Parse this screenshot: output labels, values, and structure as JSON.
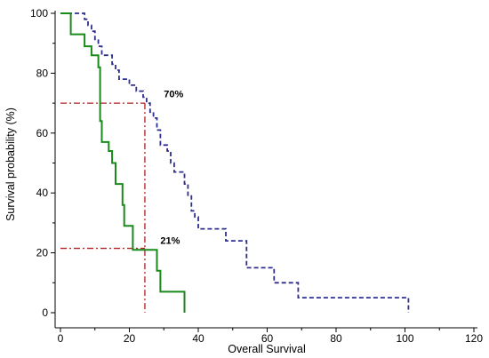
{
  "chart_data": {
    "type": "line",
    "subtype": "kaplan-meier step curves",
    "title": "",
    "xlabel": "Overall Survival",
    "ylabel": "Survival probability (%)",
    "xlim": [
      0,
      120
    ],
    "ylim": [
      0,
      100
    ],
    "xticks": [
      "0",
      "20",
      "40",
      "60",
      "80",
      "100",
      "120"
    ],
    "yticks": [
      "0",
      "20",
      "40",
      "60",
      "80",
      "100"
    ],
    "grid": false,
    "legend": "none",
    "series": [
      {
        "color": "#2e2e8f",
        "line_style": "dashed",
        "points": [
          [
            0,
            100
          ],
          [
            7,
            100
          ],
          [
            7,
            98
          ],
          [
            8,
            98
          ],
          [
            8,
            96
          ],
          [
            9,
            96
          ],
          [
            9,
            94
          ],
          [
            10,
            94
          ],
          [
            10,
            91
          ],
          [
            11,
            91
          ],
          [
            11,
            89
          ],
          [
            12,
            89
          ],
          [
            12,
            86
          ],
          [
            15,
            86
          ],
          [
            15,
            83
          ],
          [
            16,
            83
          ],
          [
            16,
            81
          ],
          [
            17,
            81
          ],
          [
            17,
            78
          ],
          [
            20,
            78
          ],
          [
            20,
            76
          ],
          [
            22,
            76
          ],
          [
            22,
            74
          ],
          [
            24,
            74
          ],
          [
            24,
            72
          ],
          [
            25,
            72
          ],
          [
            25,
            70
          ],
          [
            26,
            70
          ],
          [
            26,
            67
          ],
          [
            27,
            67
          ],
          [
            27,
            65
          ],
          [
            28,
            65
          ],
          [
            28,
            61
          ],
          [
            29,
            61
          ],
          [
            29,
            56
          ],
          [
            31,
            56
          ],
          [
            31,
            54
          ],
          [
            32,
            54
          ],
          [
            32,
            50
          ],
          [
            33,
            50
          ],
          [
            33,
            47
          ],
          [
            36,
            47
          ],
          [
            36,
            43
          ],
          [
            37,
            43
          ],
          [
            37,
            39
          ],
          [
            38,
            39
          ],
          [
            38,
            34
          ],
          [
            39,
            34
          ],
          [
            39,
            32
          ],
          [
            40,
            32
          ],
          [
            40,
            28
          ],
          [
            48,
            28
          ],
          [
            48,
            24
          ],
          [
            54,
            24
          ],
          [
            54,
            15
          ],
          [
            62,
            15
          ],
          [
            62,
            10
          ],
          [
            69,
            10
          ],
          [
            69,
            5
          ],
          [
            101,
            5
          ],
          [
            101,
            0
          ]
        ]
      },
      {
        "color": "#1a8a1a",
        "line_style": "solid",
        "points": [
          [
            0,
            100
          ],
          [
            3,
            100
          ],
          [
            3,
            93
          ],
          [
            7,
            93
          ],
          [
            7,
            89
          ],
          [
            9,
            89
          ],
          [
            9,
            86
          ],
          [
            11,
            86
          ],
          [
            11,
            82
          ],
          [
            11.5,
            82
          ],
          [
            11.5,
            64
          ],
          [
            12,
            64
          ],
          [
            12,
            57
          ],
          [
            14,
            57
          ],
          [
            14,
            54
          ],
          [
            15,
            54
          ],
          [
            15,
            50
          ],
          [
            16,
            50
          ],
          [
            16,
            43
          ],
          [
            18,
            43
          ],
          [
            18,
            36
          ],
          [
            18.5,
            36
          ],
          [
            18.5,
            29
          ],
          [
            21,
            29
          ],
          [
            21,
            21
          ],
          [
            28,
            21
          ],
          [
            28,
            14
          ],
          [
            29,
            14
          ],
          [
            29,
            7
          ],
          [
            36,
            7
          ],
          [
            36,
            0
          ]
        ]
      }
    ],
    "reference_lines": [
      {
        "color": "#b02020",
        "line_style": "dash-dot",
        "from": [
          0,
          70
        ],
        "to": [
          24.5,
          70
        ]
      },
      {
        "color": "#b02020",
        "line_style": "dash-dot",
        "from": [
          24.5,
          70
        ],
        "to": [
          24.5,
          0
        ]
      },
      {
        "color": "#b02020",
        "line_style": "dash-dot",
        "from": [
          0,
          21.5
        ],
        "to": [
          24.5,
          21.5
        ]
      }
    ],
    "annotations": [
      {
        "text": "70%",
        "x": 30,
        "y": 72
      },
      {
        "text": "21%",
        "x": 29,
        "y": 23
      }
    ]
  }
}
